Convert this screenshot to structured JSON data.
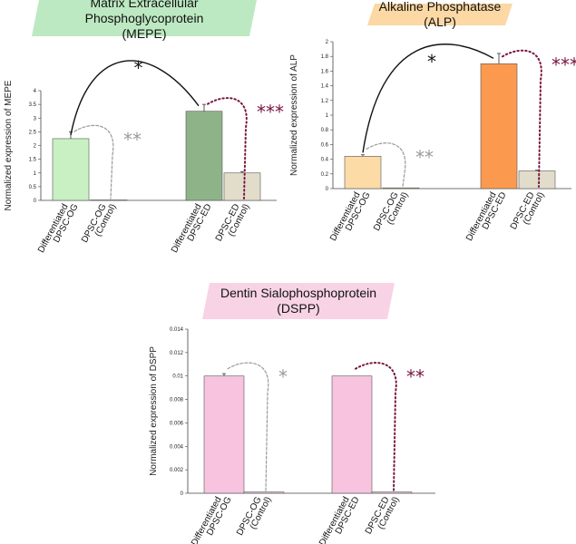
{
  "chart_data": [
    {
      "id": "mepe",
      "type": "bar",
      "title_lines": [
        "Matrix Extracellular Phosphoglycoprotein",
        "(MEPE)"
      ],
      "title_bg": "#bde9c2",
      "ylabel": "Normalized expression of MEPE",
      "ylim": [
        0,
        4
      ],
      "yticks": [
        0,
        0.5,
        1,
        1.5,
        2,
        2.5,
        3,
        3.5,
        4
      ],
      "ytick_labels": [
        "0",
        "0.5",
        "1",
        "1.5",
        "2",
        "2.5",
        "3",
        "3.5",
        "4"
      ],
      "categories": [
        [
          "Differentiated",
          "DPSC-OG"
        ],
        [
          "DPSC-OG",
          "(Control)"
        ],
        [
          "Differentiated",
          "DPSC-ED"
        ],
        [
          "DPSC-ED",
          "(Control)"
        ]
      ],
      "values": [
        2.25,
        0.02,
        3.25,
        1.0
      ],
      "errors": [
        0.25,
        0,
        0.25,
        0.05
      ],
      "bar_colors": [
        "#c8f0c3",
        "#c8f0c3",
        "#8fb388",
        "#e2dccb"
      ],
      "annotations": [
        {
          "type": "solid",
          "from": 0,
          "to": 2,
          "label": "*",
          "color": "#111111"
        },
        {
          "type": "dashed",
          "from": 0,
          "to": 1,
          "label": "**",
          "color": "#9a9a9a"
        },
        {
          "type": "dotted",
          "from": 2,
          "to": 3,
          "label": "***",
          "color": "#7a1540"
        }
      ]
    },
    {
      "id": "alp",
      "type": "bar",
      "title_lines": [
        "Alkaline Phosphatase (ALP)"
      ],
      "title_bg": "#fbd8a4",
      "ylabel": "Normalized expression of ALP",
      "ylim": [
        0,
        2
      ],
      "yticks": [
        0,
        0.2,
        0.4,
        0.6,
        0.8,
        1,
        1.2,
        1.4,
        1.6,
        1.8,
        2
      ],
      "ytick_labels": [
        "0",
        "0.2",
        "0.4",
        "0.6",
        "0.8",
        "1",
        "1.2",
        "1.4",
        "1.6",
        "1.8",
        "2"
      ],
      "categories": [
        [
          "Differentiated",
          "DPSC-OG"
        ],
        [
          "DPSC-OG",
          "(Control)"
        ],
        [
          "Differentiated",
          "DPSC-ED"
        ],
        [
          "DPSC-ED",
          "(Control)"
        ]
      ],
      "values": [
        0.44,
        0.01,
        1.7,
        0.24
      ],
      "errors": [
        0.02,
        0,
        0.14,
        0.01
      ],
      "bar_colors": [
        "#fcdba6",
        "#fcdba6",
        "#fb9a4f",
        "#e2dccb"
      ],
      "annotations": [
        {
          "type": "solid",
          "from": 0,
          "to": 2,
          "label": "*",
          "color": "#111111"
        },
        {
          "type": "dashed",
          "from": 0,
          "to": 1,
          "label": "**",
          "color": "#9a9a9a"
        },
        {
          "type": "dotted",
          "from": 2,
          "to": 3,
          "label": "***",
          "color": "#7a1540"
        }
      ]
    },
    {
      "id": "dspp",
      "type": "bar",
      "title_lines": [
        "Dentin Sialophosphoprotein",
        "(DSPP)"
      ],
      "title_bg": "#f8d3e6",
      "ylabel": "Normalized expression of DSPP",
      "ylim": [
        0,
        0.014
      ],
      "yticks": [
        0,
        0.002,
        0.004,
        0.006,
        0.008,
        0.01,
        0.012,
        0.014
      ],
      "ytick_labels": [
        "0",
        "0.002",
        "0.004",
        "0.006",
        "0.008",
        "0.01",
        "0.012",
        "0.014"
      ],
      "categories": [
        [
          "Differentiated",
          "DPSC-OG"
        ],
        [
          "DPSC-OG",
          "(Control)"
        ],
        [
          "Differentiated",
          "DPSC-ED"
        ],
        [
          "DPSC-ED",
          "(Control)"
        ]
      ],
      "values": [
        0.01,
        0.0001,
        0.01,
        0.0001
      ],
      "errors": [
        0.0002,
        0,
        0,
        0
      ],
      "bar_colors": [
        "#f7c3df",
        "#f7c3df",
        "#f7c3df",
        "#f7c3df"
      ],
      "annotations": [
        {
          "type": "dashed",
          "from": 0,
          "to": 1,
          "label": "*",
          "color": "#9a9a9a"
        },
        {
          "type": "dotted",
          "from": 2,
          "to": 3,
          "label": "**",
          "color": "#7a1540"
        }
      ]
    }
  ]
}
